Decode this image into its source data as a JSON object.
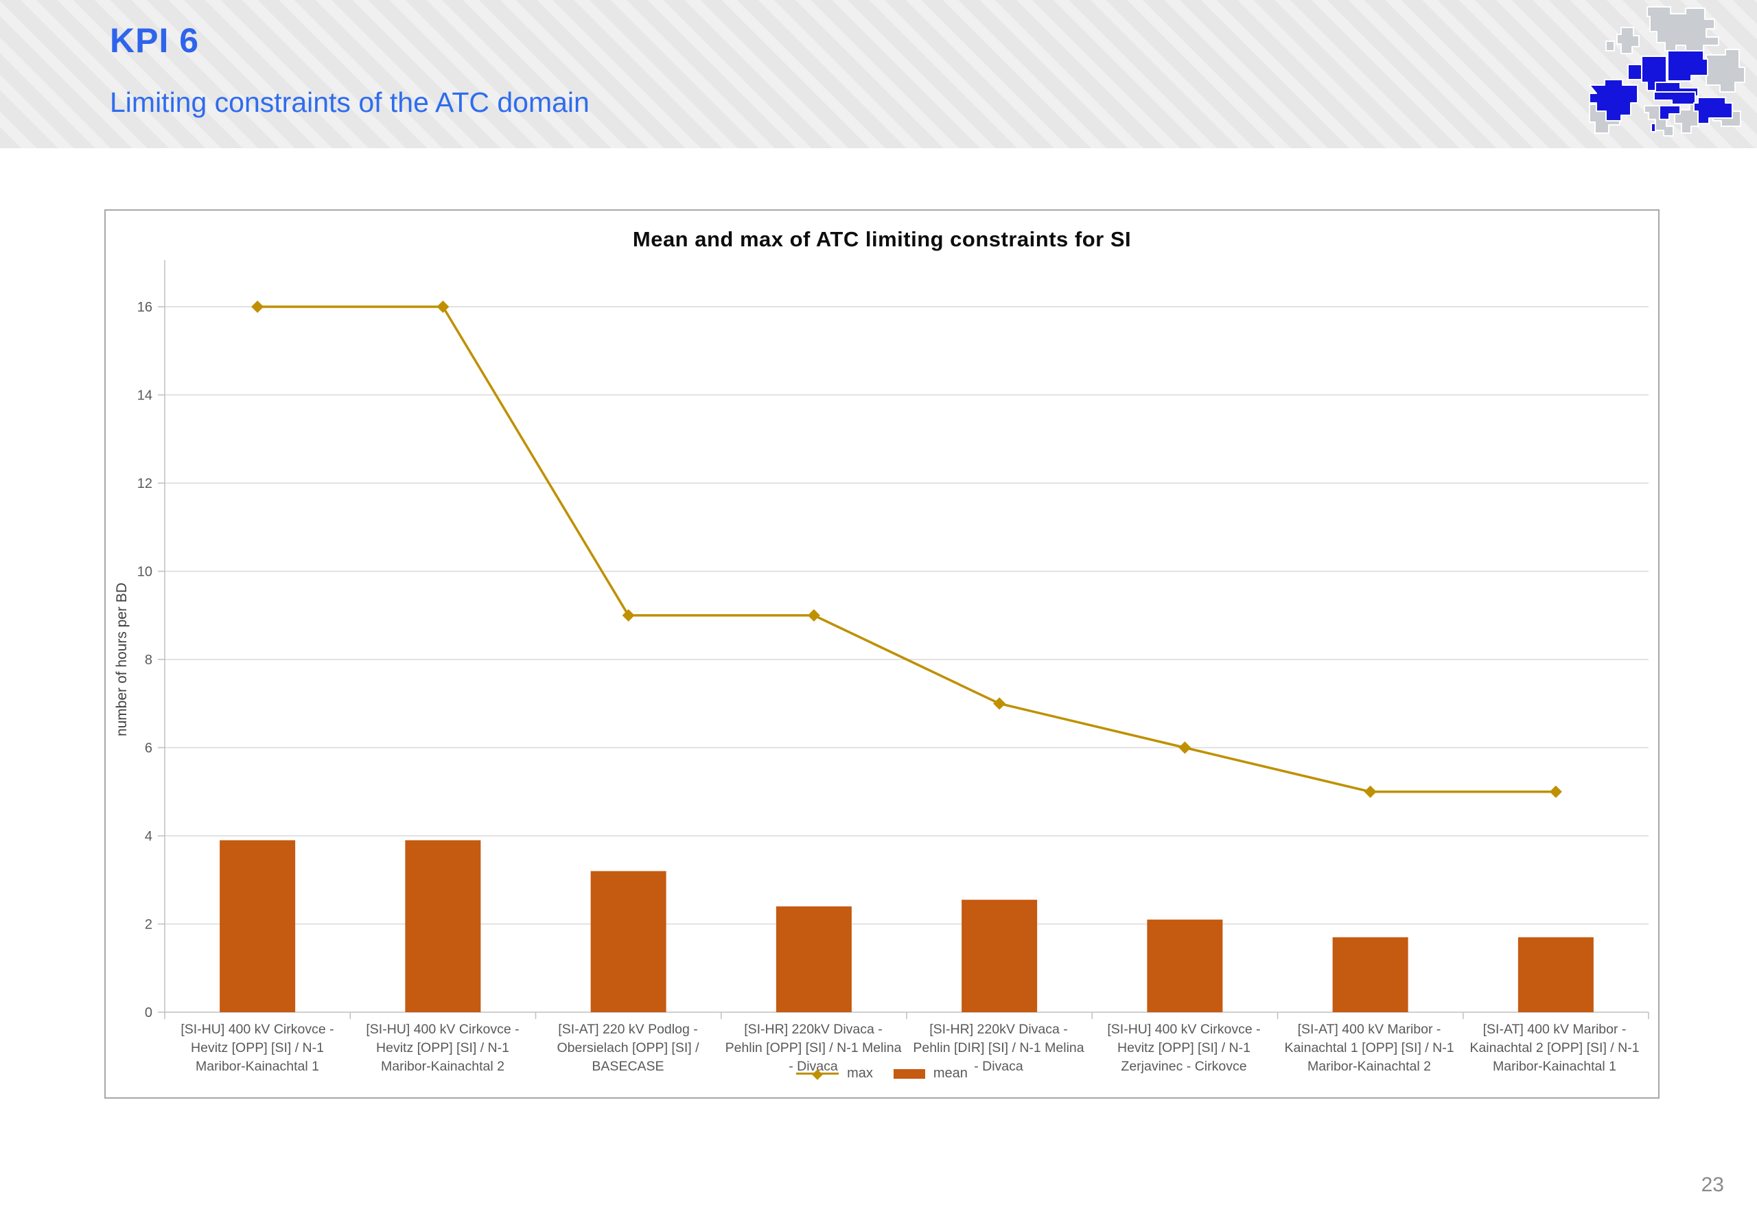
{
  "header": {
    "kpi_label": "KPI 6",
    "subtitle": "Limiting constraints of the ATC domain",
    "accent_color": "#2E64EC",
    "logo": "core-region-europe-map"
  },
  "page_number": "23",
  "chart_data": {
    "type": "bar",
    "title": "Mean and max of ATC limiting constraints for SI",
    "xlabel": "",
    "ylabel": "number of hours per BD",
    "ylim": [
      0,
      16
    ],
    "ytick_step": 2,
    "grid": true,
    "legend_position": "bottom-center",
    "categories": [
      "[SI-HU] 400 kV Cirkovce - Hevitz [OPP] [SI] / N-1 Maribor-Kainachtal 1",
      "[SI-HU] 400 kV Cirkovce - Hevitz [OPP] [SI] / N-1 Maribor-Kainachtal 2",
      "[SI-AT] 220 kV Podlog - Obersielach [OPP] [SI] / BASECASE",
      "[SI-HR] 220kV Divaca - Pehlin [OPP] [SI] / N-1 Melina - Divaca",
      "[SI-HR] 220kV Divaca - Pehlin [DIR] [SI] / N-1 Melina - Divaca",
      "[SI-HU] 400 kV Cirkovce - Hevitz [OPP] [SI] / N-1 Zerjavinec - Cirkovce",
      "[SI-AT] 400 kV Maribor - Kainachtal 1 [OPP] [SI] / N-1 Maribor-Kainachtal 2",
      "[SI-AT] 400 kV Maribor - Kainachtal 2 [OPP] [SI] / N-1 Maribor-Kainachtal 1"
    ],
    "series": [
      {
        "name": "max",
        "type": "line",
        "color": "#BF9000",
        "marker": "diamond",
        "values": [
          16,
          16,
          9,
          9,
          7,
          6,
          5,
          5
        ]
      },
      {
        "name": "mean",
        "type": "bar",
        "color": "#C55A11",
        "values": [
          3.9,
          3.9,
          3.2,
          2.4,
          2.55,
          2.1,
          1.7,
          1.7
        ]
      }
    ],
    "colors": {
      "gridline": "#D9D9D9",
      "axis": "#BFBFBF",
      "tick_label": "#595959",
      "axis_title": "#404040"
    }
  }
}
